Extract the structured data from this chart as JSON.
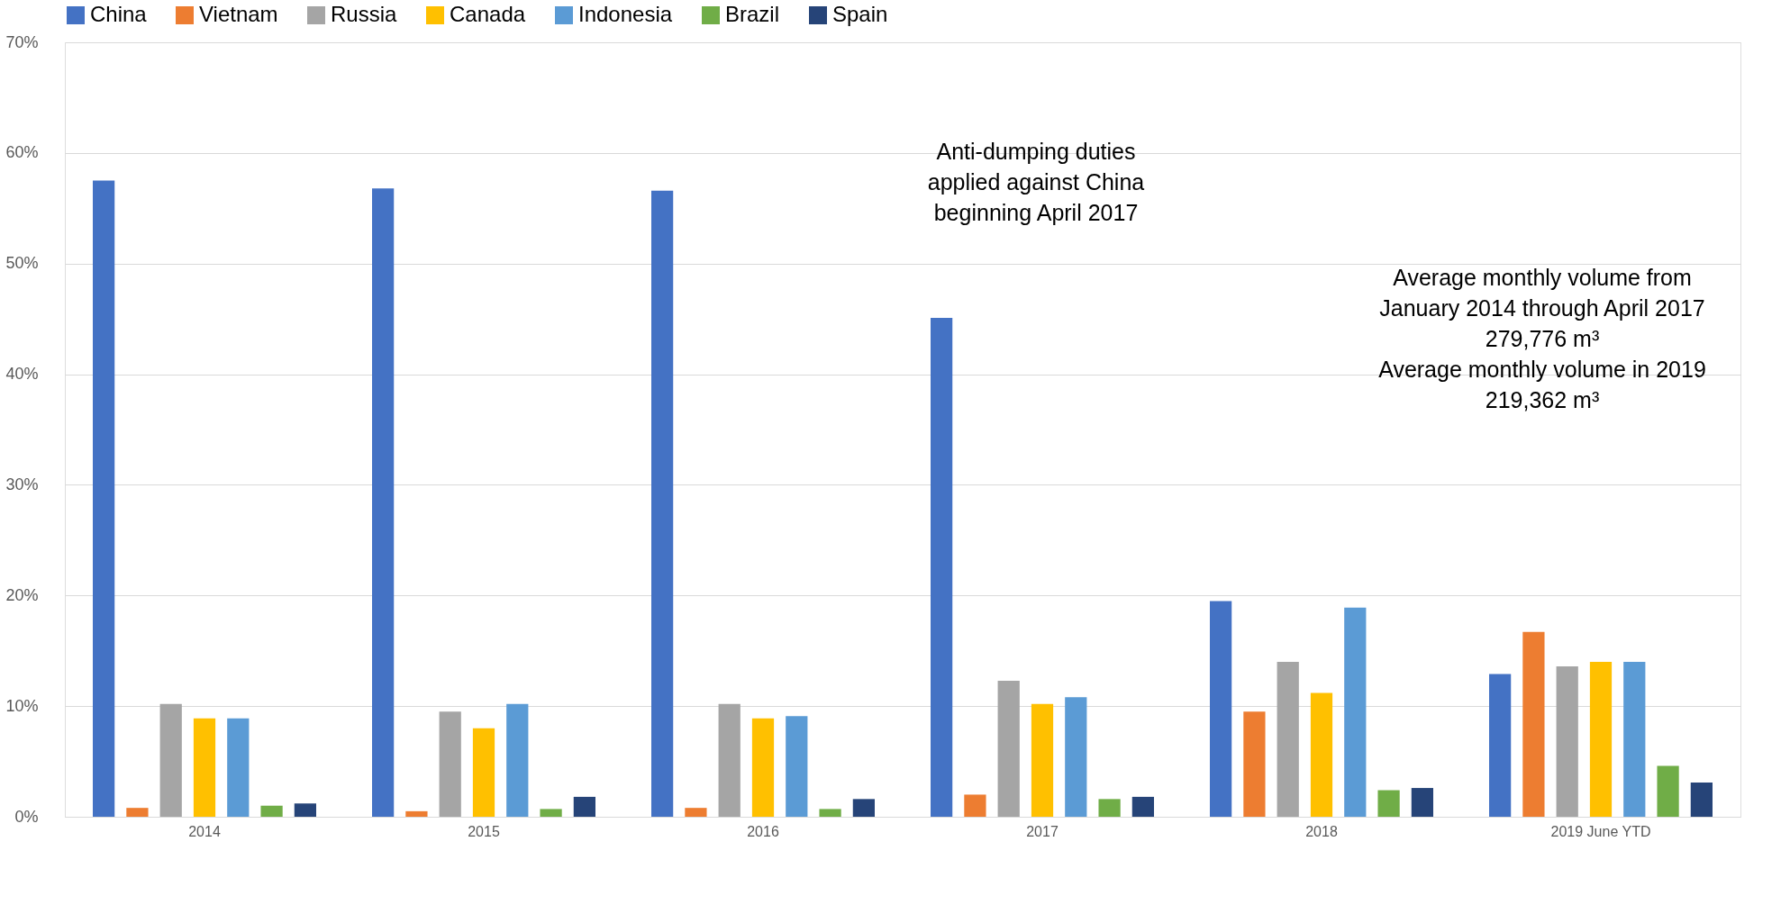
{
  "chart_data": {
    "type": "bar",
    "categories": [
      "2014",
      "2015",
      "2016",
      "2017",
      "2018",
      "2019 June YTD"
    ],
    "series": [
      {
        "name": "China",
        "color": "#4472c4",
        "values": [
          57.5,
          56.8,
          56.6,
          45.1,
          19.5,
          12.9
        ]
      },
      {
        "name": "Vietnam",
        "color": "#ed7d31",
        "values": [
          0.8,
          0.5,
          0.8,
          2.0,
          9.5,
          16.7
        ]
      },
      {
        "name": "Russia",
        "color": "#a5a5a5",
        "values": [
          10.2,
          9.5,
          10.2,
          12.3,
          14.0,
          13.6
        ]
      },
      {
        "name": "Canada",
        "color": "#ffc000",
        "values": [
          8.9,
          8.0,
          8.9,
          10.2,
          11.2,
          14.0
        ]
      },
      {
        "name": "Indonesia",
        "color": "#5b9bd5",
        "values": [
          8.9,
          10.2,
          9.1,
          10.8,
          18.9,
          14.0
        ]
      },
      {
        "name": "Brazil",
        "color": "#70ad47",
        "values": [
          1.0,
          0.7,
          0.7,
          1.6,
          2.4,
          4.6
        ]
      },
      {
        "name": "Spain",
        "color": "#264478",
        "values": [
          1.2,
          1.8,
          1.6,
          1.8,
          2.6,
          3.1
        ]
      }
    ],
    "ylim": [
      0,
      70
    ],
    "yticks": [
      {
        "value": 0,
        "label": "0%"
      },
      {
        "value": 10,
        "label": "10%"
      },
      {
        "value": 20,
        "label": "20%"
      },
      {
        "value": 30,
        "label": "30%"
      },
      {
        "value": 40,
        "label": "40%"
      },
      {
        "value": 50,
        "label": "50%"
      },
      {
        "value": 60,
        "label": "60%"
      },
      {
        "value": 70,
        "label": "70%"
      }
    ],
    "grid": "y",
    "legend": "top",
    "annotations": [
      "Anti-dumping duties\napplied against China\nbeginning April 2017",
      "Average monthly volume from\nJanuary 2014 through April 2017\n279,776 m³\nAverage monthly volume in 2019\n219,362 m³"
    ]
  }
}
